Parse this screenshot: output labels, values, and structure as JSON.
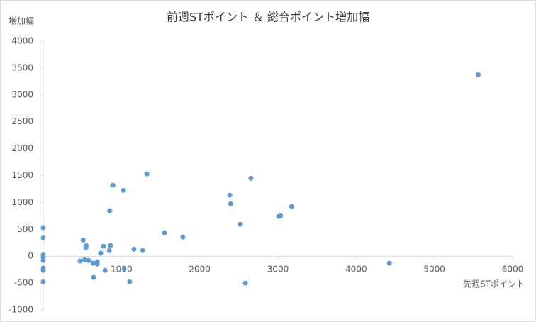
{
  "chart_data": {
    "type": "scatter",
    "title": "前週STポイント ＆ 総合ポイント増加幅",
    "x_label": "先週STポイント",
    "y_label": "増加幅",
    "color": "#5b9bd5",
    "x": [
      0,
      0,
      0,
      0,
      0,
      0,
      0,
      0,
      470,
      510,
      530,
      545,
      550,
      580,
      635,
      645,
      690,
      690,
      735,
      770,
      790,
      845,
      850,
      860,
      890,
      1025,
      1035,
      1105,
      1160,
      1270,
      1325,
      1550,
      1785,
      2385,
      2395,
      2520,
      2585,
      2655,
      3010,
      3035,
      3175,
      4425,
      5560
    ],
    "values": [
      530,
      340,
      25,
      -25,
      -80,
      -225,
      -265,
      -475,
      -90,
      300,
      -65,
      160,
      200,
      -80,
      -130,
      -395,
      -105,
      -145,
      55,
      185,
      -265,
      105,
      845,
      200,
      1320,
      1225,
      -240,
      -475,
      130,
      105,
      1530,
      435,
      355,
      1135,
      975,
      595,
      -500,
      1450,
      740,
      750,
      925,
      -130,
      3375
    ],
    "xlim": [
      0,
      6000
    ],
    "xticks": [
      0,
      1000,
      2000,
      3000,
      4000,
      5000,
      6000
    ],
    "ylim": [
      -1000,
      4000
    ],
    "yticks": [
      -1000,
      -500,
      0,
      500,
      1000,
      1500,
      2000,
      2500,
      3000,
      3500,
      4000
    ]
  }
}
